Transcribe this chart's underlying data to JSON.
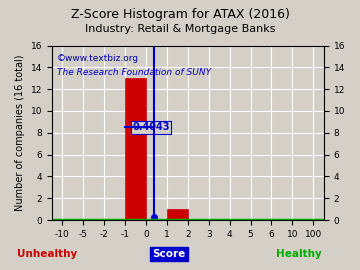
{
  "title": "Z-Score Histogram for ATAX (2016)",
  "subtitle": "Industry: Retail & Mortgage Banks",
  "xlabel_score": "Score",
  "xlabel_unhealthy": "Unhealthy",
  "xlabel_healthy": "Healthy",
  "ylabel": "Number of companies (16 total)",
  "watermark1": "©www.textbiz.org",
  "watermark2": "The Research Foundation of SUNY",
  "bar_color": "#cc0000",
  "marker_value": 0.4043,
  "marker_label": "0.4043",
  "marker_color": "#0000cc",
  "x_tick_labels": [
    "-10",
    "-5",
    "-2",
    "-1",
    "0",
    "1",
    "2",
    "3",
    "4",
    "5",
    "6",
    "10",
    "100"
  ],
  "ylim": [
    0,
    16
  ],
  "yticks": [
    0,
    2,
    4,
    6,
    8,
    10,
    12,
    14,
    16
  ],
  "bg_color": "#d4d0c8",
  "grid_color": "#ffffff",
  "title_color": "#000000",
  "subtitle_color": "#000000",
  "unhealthy_color": "#cc0000",
  "healthy_color": "#00aa00",
  "score_bg": "#0000cc",
  "score_fg": "#ffffff",
  "watermark1_color": "#0000aa",
  "watermark2_color": "#0000cc",
  "border_bottom_color": "#00aa00",
  "font_size_title": 9,
  "font_size_subtitle": 8,
  "font_size_labels": 7,
  "font_size_watermark": 6.5,
  "font_size_ticks": 6.5,
  "font_size_marker": 7
}
